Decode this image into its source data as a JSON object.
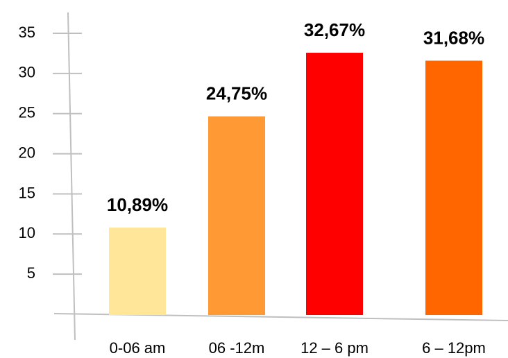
{
  "chart_data": {
    "type": "bar",
    "title": "",
    "xlabel": "",
    "ylabel": "",
    "categories": [
      "0-06 am",
      "06 -12m",
      "12 – 6 pm",
      "6 – 12pm"
    ],
    "values": [
      10.89,
      24.75,
      32.67,
      31.68
    ],
    "data_labels": [
      "10,89%",
      "24,75%",
      "32,67%",
      "31,68%"
    ],
    "bar_colors": [
      "#FFE699",
      "#FF9933",
      "#FF0000",
      "#FF6600"
    ],
    "y_ticks": [
      5,
      10,
      15,
      20,
      25,
      30,
      35
    ],
    "ylim": [
      0,
      35
    ],
    "grid": false,
    "legend": "none"
  },
  "axis_color": "#BFBFBF"
}
